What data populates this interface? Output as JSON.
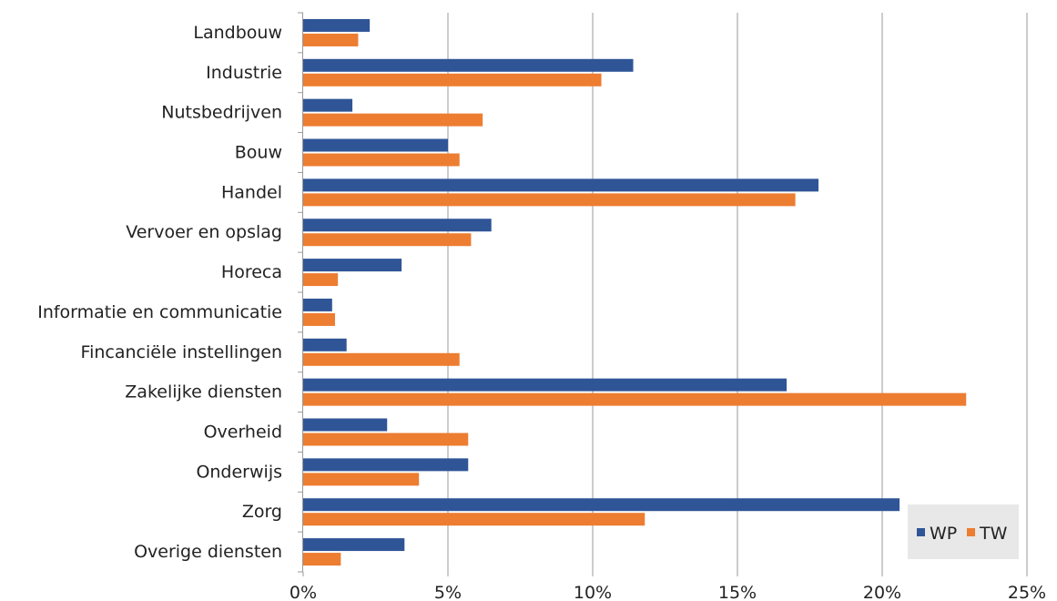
{
  "chart_data": {
    "type": "bar",
    "orientation": "horizontal",
    "categories": [
      "Landbouw",
      "Industrie",
      "Nutsbedrijven",
      "Bouw",
      "Handel",
      "Vervoer en opslag",
      "Horeca",
      "Informatie en communicatie",
      "Fincanciële instellingen",
      "Zakelijke diensten",
      "Overheid",
      "Onderwijs",
      "Zorg",
      "Overige diensten"
    ],
    "series": [
      {
        "name": "WP",
        "color": "#2f5597",
        "values": [
          2.3,
          11.4,
          1.7,
          5.0,
          17.8,
          6.5,
          3.4,
          1.0,
          1.5,
          16.7,
          2.9,
          5.7,
          20.6,
          3.5
        ]
      },
      {
        "name": "TW",
        "color": "#ed7d31",
        "values": [
          1.9,
          10.3,
          6.2,
          5.4,
          17.0,
          5.8,
          1.2,
          1.1,
          5.4,
          22.9,
          5.7,
          4.0,
          11.8,
          1.3
        ]
      }
    ],
    "x_ticks": [
      "0%",
      "5%",
      "10%",
      "15%",
      "20%",
      "25%"
    ],
    "xlim": [
      0,
      25
    ],
    "grid": "vertical",
    "legend_position": "bottom-right",
    "title": "",
    "xlabel": "",
    "ylabel": ""
  }
}
